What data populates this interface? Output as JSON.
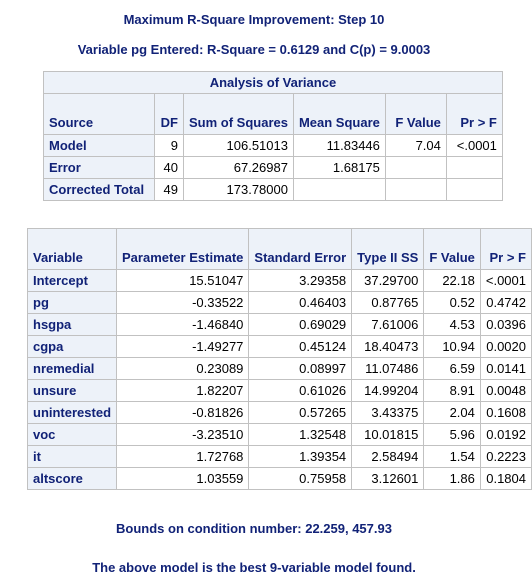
{
  "titles": {
    "main": "Maximum R-Square Improvement: Step 10",
    "sub": "Variable pg Entered: R-Square = 0.6129 and C(p) = 9.0003",
    "bounds": "Bounds on condition number: 22.259, 457.93",
    "footer": "The above model is the best 9-variable model found."
  },
  "anova": {
    "caption": "Analysis of Variance",
    "headers": [
      "Source",
      "DF",
      "Sum of Squares",
      "Mean Square",
      "F Value",
      "Pr > F"
    ],
    "rows": [
      {
        "source": "Model",
        "df": "9",
        "ss": "106.51013",
        "ms": "11.83446",
        "f": "7.04",
        "p": "<.0001"
      },
      {
        "source": "Error",
        "df": "40",
        "ss": "67.26987",
        "ms": "1.68175",
        "f": "",
        "p": ""
      },
      {
        "source": "Corrected Total",
        "df": "49",
        "ss": "173.78000",
        "ms": "",
        "f": "",
        "p": ""
      }
    ]
  },
  "params": {
    "headers": [
      "Variable",
      "Parameter Estimate",
      "Standard Error",
      "Type II SS",
      "F Value",
      "Pr > F"
    ],
    "rows": [
      {
        "var": "Intercept",
        "est": "15.51047",
        "se": "3.29358",
        "ss": "37.29700",
        "f": "22.18",
        "p": "<.0001"
      },
      {
        "var": "pg",
        "est": "-0.33522",
        "se": "0.46403",
        "ss": "0.87765",
        "f": "0.52",
        "p": "0.4742"
      },
      {
        "var": "hsgpa",
        "est": "-1.46840",
        "se": "0.69029",
        "ss": "7.61006",
        "f": "4.53",
        "p": "0.0396"
      },
      {
        "var": "cgpa",
        "est": "-1.49277",
        "se": "0.45124",
        "ss": "18.40473",
        "f": "10.94",
        "p": "0.0020"
      },
      {
        "var": "nremedial",
        "est": "0.23089",
        "se": "0.08997",
        "ss": "11.07486",
        "f": "6.59",
        "p": "0.0141"
      },
      {
        "var": "unsure",
        "est": "1.82207",
        "se": "0.61026",
        "ss": "14.99204",
        "f": "8.91",
        "p": "0.0048"
      },
      {
        "var": "uninterested",
        "est": "-0.81826",
        "se": "0.57265",
        "ss": "3.43375",
        "f": "2.04",
        "p": "0.1608"
      },
      {
        "var": "voc",
        "est": "-3.23510",
        "se": "1.32548",
        "ss": "10.01815",
        "f": "5.96",
        "p": "0.0192"
      },
      {
        "var": "it",
        "est": "1.72768",
        "se": "1.39354",
        "ss": "2.58494",
        "f": "1.54",
        "p": "0.2223"
      },
      {
        "var": "altscore",
        "est": "1.03559",
        "se": "0.75958",
        "ss": "3.12601",
        "f": "1.86",
        "p": "0.1804"
      }
    ]
  }
}
